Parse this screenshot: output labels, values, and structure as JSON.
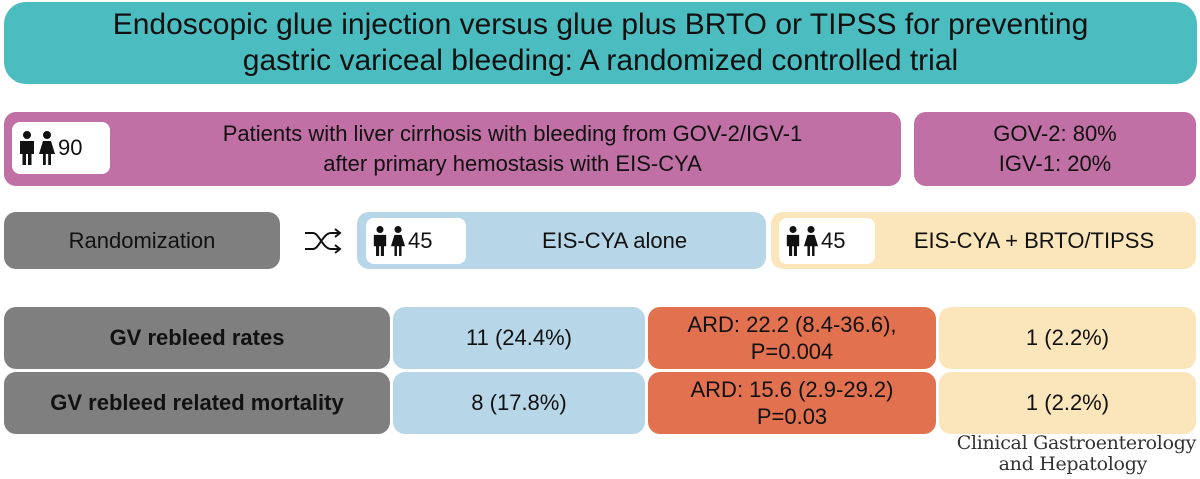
{
  "title": {
    "line1": "Endoscopic glue injection versus glue plus BRTO or TIPSS for preventing",
    "line2": "gastric variceal bleeding: A randomized controlled trial"
  },
  "population": {
    "count": "90",
    "line1": "Patients with liver cirrhosis with bleeding from GOV-2/IGV-1",
    "line2": "after primary hemostasis with EIS-CYA"
  },
  "subtypes": {
    "line1": "GOV-2: 80%",
    "line2": "IGV-1: 20%"
  },
  "randomization": {
    "label": "Randomization",
    "icon": "shuffle-icon"
  },
  "arms": [
    {
      "count": "45",
      "label": "EIS-CYA alone",
      "color": "#b7d7e8"
    },
    {
      "count": "45",
      "label": "EIS-CYA + BRTO/TIPSS",
      "color": "#fbe6bc"
    }
  ],
  "outcomes": [
    {
      "label": "GV rebleed rates",
      "arm_a": "11 (24.4%)",
      "ard_line1": "ARD: 22.2 (8.4-36.6),",
      "ard_line2": "P=0.004",
      "arm_b": "1 (2.2%)"
    },
    {
      "label": "GV rebleed related mortality",
      "arm_a": "8 (17.8%)",
      "ard_line1": "ARD: 15.6 (2.9-29.2)",
      "ard_line2": "P=0.03",
      "arm_b": "1 (2.2%)"
    }
  ],
  "journal": {
    "line1": "Clinical Gastroenterology",
    "line2": "and Hepatology"
  },
  "colors": {
    "title_bg": "#4bbcc0",
    "population_bg": "#c070a4",
    "gray": "#7f7f7f",
    "arm_a": "#b7d7e8",
    "arm_b": "#fbe6bc",
    "ard": "#e2714f"
  }
}
